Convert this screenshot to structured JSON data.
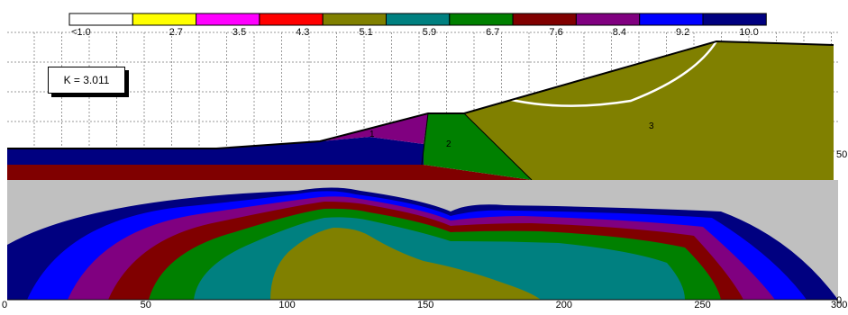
{
  "legend": {
    "labels": [
      "<1.0",
      "2.7",
      "3.5",
      "4.3",
      "5.1",
      "5.9",
      "6.7",
      "7.6",
      "8.4",
      "9.2",
      "10.0"
    ],
    "colors": [
      "#ffffff",
      "#ffff00",
      "#ff00ff",
      "#ff0000",
      "#808000",
      "#008080",
      "#008000",
      "#800000",
      "#800080",
      "#0000ff",
      "#000080"
    ]
  },
  "safety_factor": {
    "label": "K = 3.011"
  },
  "chart_data": {
    "type": "heatmap",
    "title": "",
    "xlabel": "",
    "ylabel": "",
    "x_ticks": [
      "0",
      "50",
      "100",
      "150",
      "200",
      "250",
      "300"
    ],
    "y_ticks": [
      "50",
      "0"
    ],
    "xlim": [
      0,
      300
    ],
    "grid": true,
    "region_labels": [
      "1",
      "2",
      "3"
    ],
    "slip_circle": "white arc in upper slope of region 3",
    "colors": {
      "foundation_bg": "#c0c0c0",
      "embankment": "#808000",
      "toe": "#008000",
      "top_layer": "#800080",
      "layer_navy": "#000080",
      "layer_red": "#800000"
    }
  }
}
